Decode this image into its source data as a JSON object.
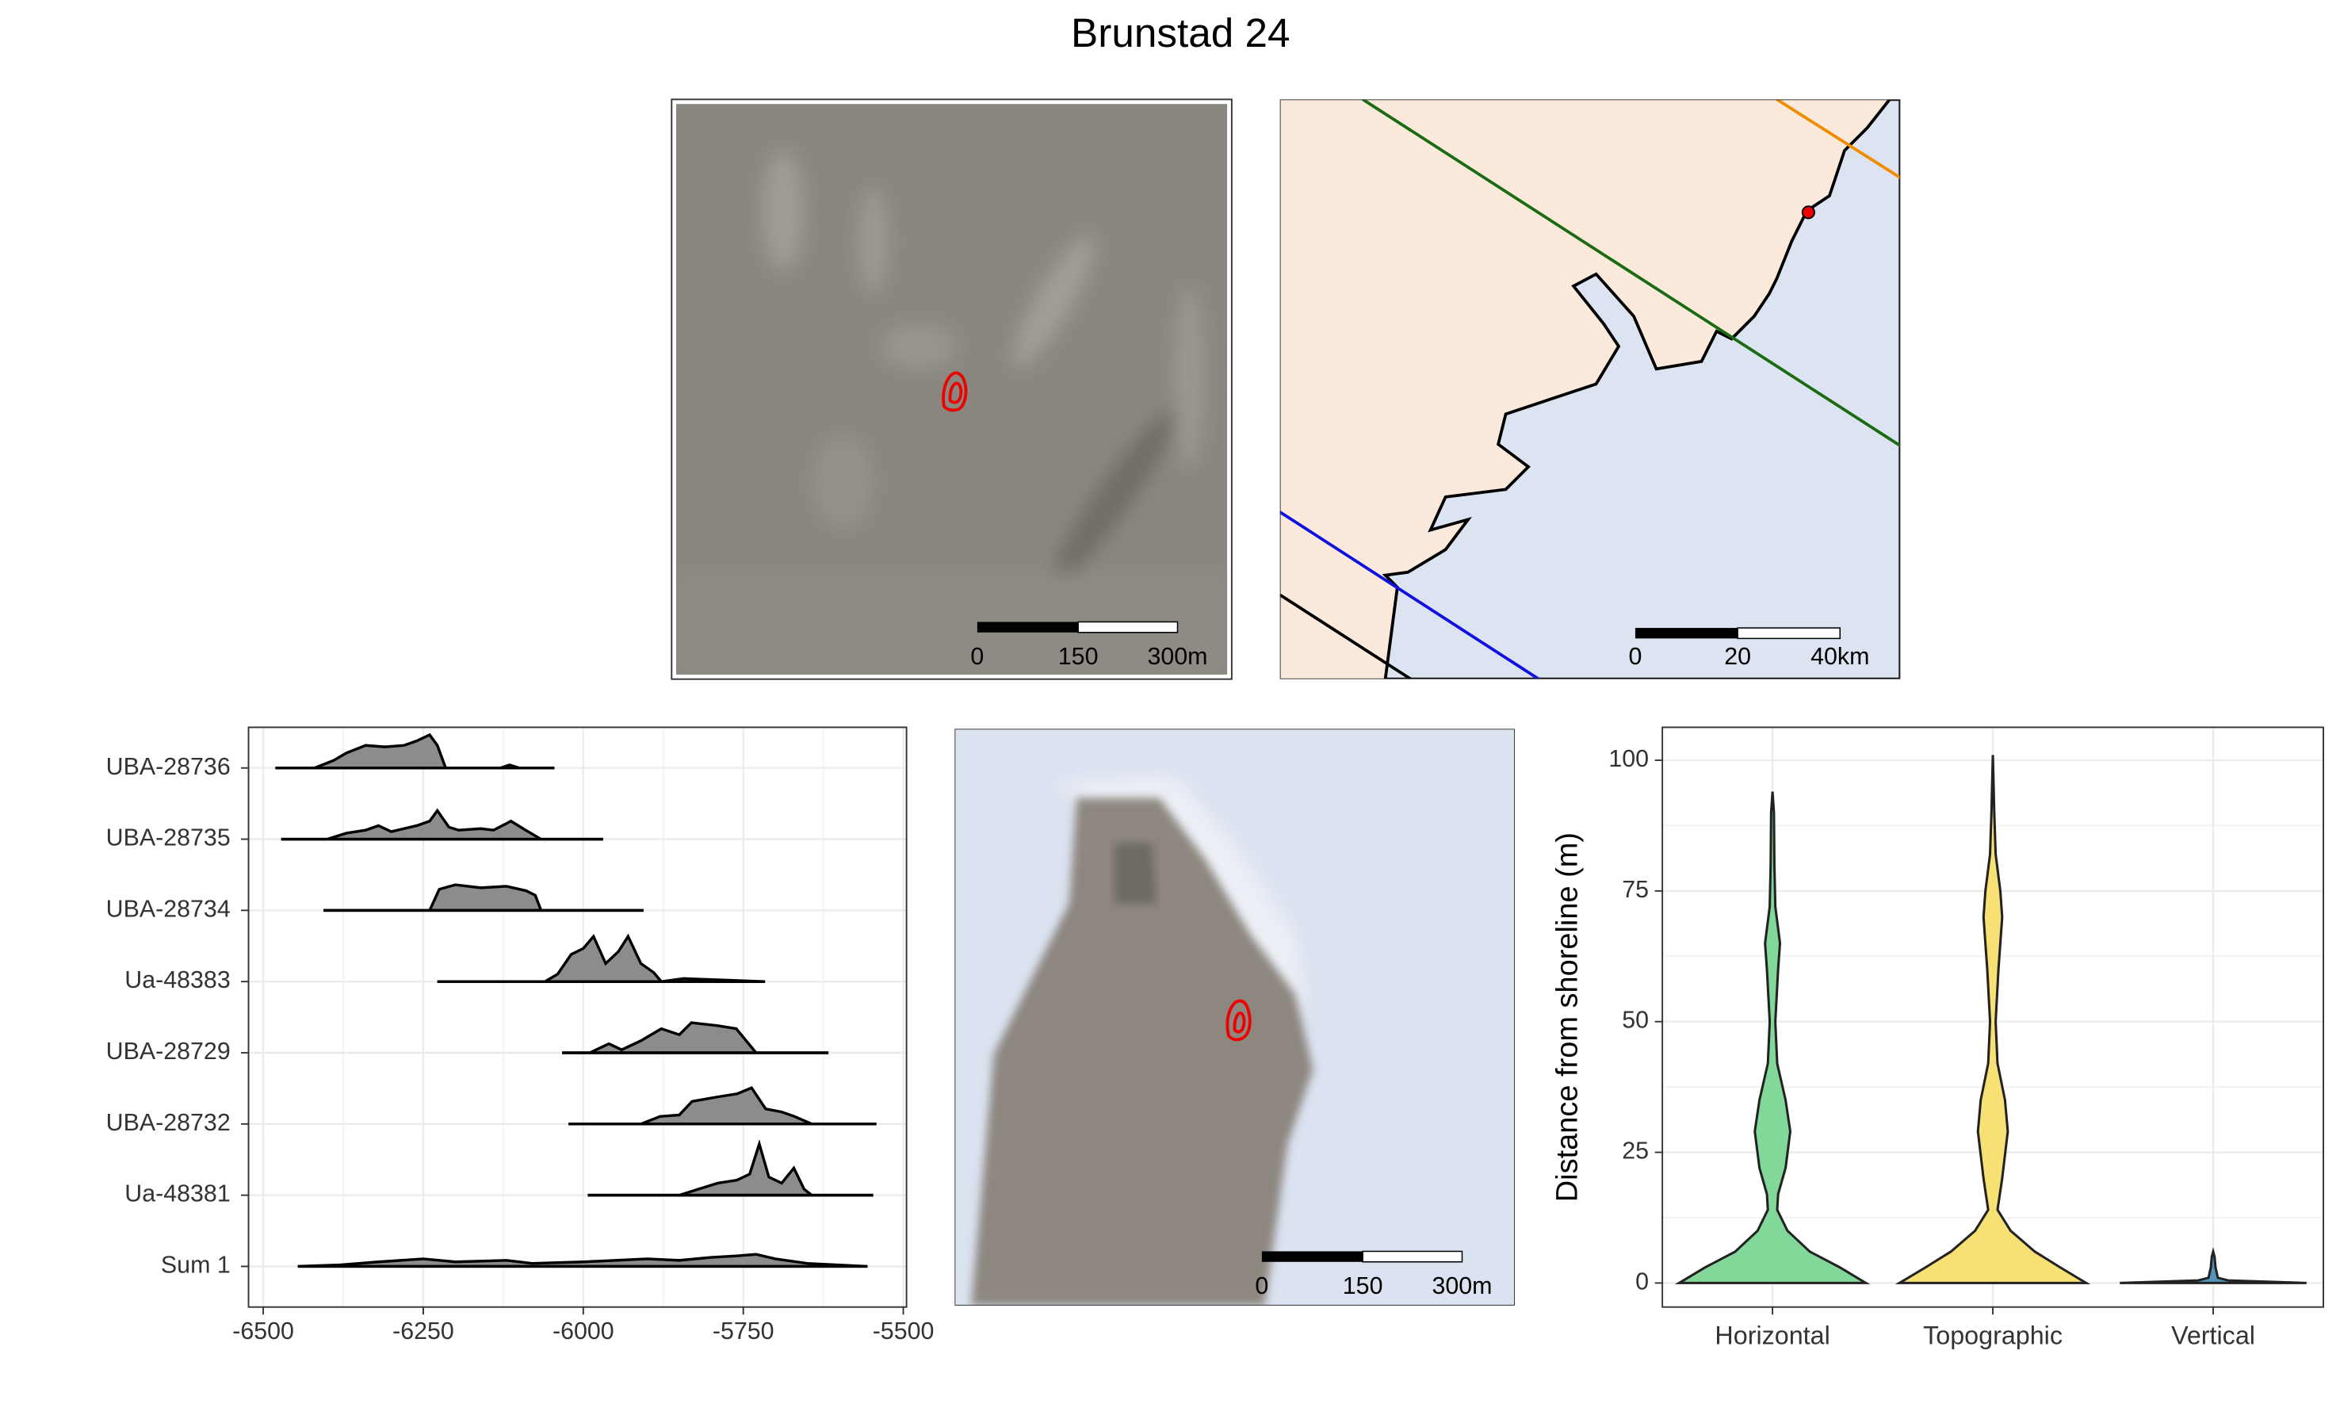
{
  "title": "Brunstad 24",
  "chart_data": [
    {
      "type": "map",
      "scale_labels": [
        "0",
        "150",
        "300m"
      ]
    },
    {
      "type": "map",
      "scale_labels": [
        "0",
        "20",
        "40km"
      ]
    },
    {
      "type": "ridgeline",
      "categories": [
        "UBA-28736",
        "UBA-28735",
        "UBA-28734",
        "Ua-48383",
        "UBA-28729",
        "UBA-28732",
        "Ua-48381",
        "Sum 1"
      ],
      "series": [
        {
          "name": "UBA-28736",
          "extent": [
            -6481,
            -6045
          ],
          "x": [
            -6481,
            -6420,
            -6390,
            -6370,
            -6340,
            -6310,
            -6280,
            -6260,
            -6240,
            -6228,
            -6215,
            -6200,
            -6130,
            -6115,
            -6100,
            -6045
          ],
          "values": [
            0,
            0,
            5,
            10,
            15,
            14,
            15,
            18,
            22,
            15,
            0,
            0,
            0,
            2,
            0,
            0
          ]
        },
        {
          "name": "UBA-28735",
          "extent": [
            -6472,
            -5969
          ],
          "x": [
            -6472,
            -6400,
            -6370,
            -6340,
            -6320,
            -6300,
            -6260,
            -6240,
            -6228,
            -6210,
            -6195,
            -6160,
            -6140,
            -6113,
            -6090,
            -6066,
            -5969
          ],
          "values": [
            0,
            0,
            4,
            6,
            9,
            5,
            9,
            12,
            19,
            8,
            6,
            7,
            6,
            12,
            6,
            0,
            0
          ]
        },
        {
          "name": "UBA-28734",
          "extent": [
            -6406,
            -5906
          ],
          "x": [
            -6406,
            -6240,
            -6225,
            -6200,
            -6160,
            -6120,
            -6089,
            -6075,
            -6066,
            -5906
          ],
          "values": [
            0,
            0,
            14,
            17,
            15,
            16,
            13,
            10,
            0,
            0
          ]
        },
        {
          "name": "Ua-48383",
          "extent": [
            -6228,
            -5716
          ],
          "x": [
            -6228,
            -6060,
            -6040,
            -6019,
            -6000,
            -5984,
            -5965,
            -5945,
            -5930,
            -5910,
            -5890,
            -5878,
            -5843,
            -5716
          ],
          "values": [
            0,
            0,
            5,
            18,
            22,
            30,
            12,
            20,
            30,
            12,
            6,
            0,
            2,
            0
          ]
        },
        {
          "name": "UBA-28729",
          "extent": [
            -6033,
            -5617
          ],
          "x": [
            -6033,
            -5990,
            -5960,
            -5940,
            -5910,
            -5878,
            -5850,
            -5831,
            -5790,
            -5761,
            -5730,
            -5617
          ],
          "values": [
            0,
            0,
            6,
            2,
            8,
            16,
            12,
            20,
            18,
            16,
            0,
            0
          ]
        },
        {
          "name": "UBA-28732",
          "extent": [
            -6023,
            -5542
          ],
          "x": [
            -6023,
            -5910,
            -5880,
            -5850,
            -5830,
            -5790,
            -5760,
            -5737,
            -5715,
            -5690,
            -5670,
            -5643,
            -5542
          ],
          "values": [
            0,
            0,
            5,
            6,
            15,
            18,
            20,
            24,
            10,
            8,
            5,
            0,
            0
          ]
        },
        {
          "name": "Ua-48381",
          "extent": [
            -5993,
            -5547
          ],
          "x": [
            -5993,
            -5850,
            -5820,
            -5790,
            -5760,
            -5740,
            -5725,
            -5710,
            -5690,
            -5671,
            -5655,
            -5643,
            -5547
          ],
          "values": [
            0,
            0,
            4,
            8,
            10,
            14,
            34,
            12,
            8,
            18,
            4,
            0,
            0
          ]
        },
        {
          "name": "Sum 1",
          "extent": [
            -6446,
            -5556
          ],
          "x": [
            -6446,
            -6380,
            -6320,
            -6250,
            -6200,
            -6120,
            -6080,
            -6000,
            -5950,
            -5900,
            -5850,
            -5800,
            -5760,
            -5730,
            -5700,
            -5650,
            -5556
          ],
          "values": [
            0,
            1,
            3,
            5,
            3,
            4,
            2,
            3,
            4,
            5,
            4,
            6,
            7,
            8,
            5,
            2,
            0
          ]
        }
      ],
      "color": "#8c8c8c",
      "xlim": [
        -6523,
        -5495
      ],
      "xticks": [
        -6500,
        -6250,
        -6000,
        -5750,
        -5500
      ],
      "grid": true
    },
    {
      "type": "map",
      "scale_labels": [
        "0",
        "150",
        "300m"
      ]
    },
    {
      "type": "violin",
      "ylabel": "Distance from shoreline (m)",
      "categories": [
        "Horizontal",
        "Topographic",
        "Vertical"
      ],
      "series": [
        {
          "name": "Horizontal",
          "color": "#7bd693",
          "y": [
            0,
            3,
            6,
            10,
            14,
            17,
            22,
            29,
            35,
            42,
            50,
            60,
            65,
            72,
            80,
            90,
            94
          ],
          "widths": [
            1,
            0.72,
            0.4,
            0.16,
            0.05,
            0.06,
            0.14,
            0.19,
            0.14,
            0.05,
            0.03,
            0.06,
            0.08,
            0.03,
            0.02,
            0.015,
            0
          ]
        },
        {
          "name": "Topographic",
          "color": "#f7df6e",
          "y": [
            0,
            3,
            6,
            10,
            14,
            20,
            29,
            35,
            42,
            50,
            60,
            70,
            75,
            82,
            90,
            101
          ],
          "widths": [
            1,
            0.72,
            0.45,
            0.19,
            0.05,
            0.1,
            0.16,
            0.13,
            0.05,
            0.03,
            0.06,
            0.1,
            0.08,
            0.03,
            0.015,
            0
          ]
        },
        {
          "name": "Vertical",
          "color": "#4a90b5",
          "y": [
            0,
            0.5,
            1,
            3,
            5,
            6
          ],
          "widths": [
            1,
            0.16,
            0.05,
            0.025,
            0.015,
            0
          ]
        }
      ],
      "ylim": [
        -4.6,
        106.3
      ],
      "yticks": [
        0,
        25,
        50,
        75,
        100
      ],
      "grid": true
    }
  ]
}
